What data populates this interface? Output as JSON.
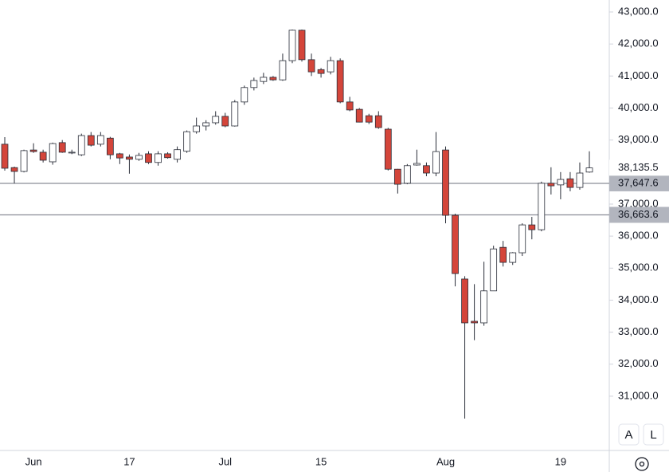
{
  "chart_data": {
    "type": "candlestick",
    "categories": [
      null,
      null,
      null,
      "Jun",
      null,
      null,
      null,
      null,
      null,
      null,
      null,
      null,
      null,
      "17",
      null,
      null,
      null,
      null,
      null,
      null,
      null,
      null,
      null,
      "Jul",
      null,
      null,
      null,
      null,
      null,
      null,
      null,
      null,
      null,
      "15",
      null,
      null,
      null,
      null,
      null,
      null,
      null,
      null,
      null,
      null,
      null,
      null,
      "Aug",
      null,
      null,
      null,
      null,
      null,
      null,
      null,
      null,
      null,
      null,
      null,
      "19",
      null,
      null,
      null
    ],
    "open": [
      38870,
      38140,
      38020,
      38690,
      38620,
      38320,
      38920,
      38600,
      38540,
      39140,
      38870,
      39060,
      38570,
      38470,
      38400,
      38570,
      38300,
      38570,
      38400,
      38650,
      39260,
      39440,
      39540,
      39740,
      39440,
      40190,
      40640,
      40830,
      40960,
      40880,
      41480,
      42430,
      41510,
      41200,
      41130,
      41480,
      40190,
      39960,
      39760,
      39760,
      39340,
      38090,
      37650,
      38220,
      38200,
      37970,
      38690,
      36650,
      34660,
      33340,
      33290,
      34290,
      35650,
      35180,
      35480,
      36350,
      36200,
      37650,
      37600,
      37790,
      37520,
      38000
    ],
    "high": [
      39090,
      38170,
      38700,
      38900,
      38700,
      38920,
      39000,
      38700,
      39200,
      39250,
      39250,
      39100,
      38600,
      38550,
      38600,
      38650,
      38650,
      38620,
      38800,
      39300,
      39700,
      39620,
      39900,
      39850,
      40250,
      40700,
      40950,
      41100,
      41000,
      41700,
      42450,
      42450,
      41700,
      41250,
      41600,
      41550,
      40350,
      40000,
      39820,
      39900,
      39380,
      38100,
      38250,
      38700,
      38300,
      39250,
      38800,
      36700,
      34750,
      34500,
      35200,
      35700,
      35850,
      35500,
      36400,
      36600,
      37700,
      38150,
      38000,
      38000,
      38300,
      38650
    ],
    "low": [
      38045,
      37650,
      37990,
      38600,
      38300,
      38230,
      38600,
      38560,
      38500,
      38800,
      38800,
      38400,
      38250,
      37950,
      38350,
      38250,
      38200,
      38420,
      38300,
      38600,
      39200,
      39300,
      39480,
      39400,
      39420,
      40100,
      40550,
      40750,
      40850,
      40850,
      41400,
      41450,
      41000,
      40950,
      41050,
      40150,
      39900,
      39550,
      39500,
      39350,
      38050,
      37330,
      37620,
      38200,
      37870,
      37870,
      36400,
      34430,
      30300,
      32750,
      33200,
      34290,
      35050,
      35100,
      35380,
      35900,
      36150,
      37300,
      37150,
      37400,
      37450,
      37980
    ],
    "close": [
      38120,
      38020,
      38670,
      38640,
      38370,
      38890,
      38620,
      38620,
      39140,
      38840,
      39140,
      38540,
      38440,
      38400,
      38520,
      38300,
      38570,
      38450,
      38700,
      39260,
      39440,
      39540,
      39740,
      39440,
      40190,
      40640,
      40860,
      40960,
      40880,
      41480,
      42430,
      41510,
      41130,
      41080,
      41480,
      40190,
      39940,
      39560,
      39560,
      39390,
      38090,
      37620,
      38200,
      38270,
      37970,
      38640,
      36650,
      34830,
      33290,
      33290,
      34290,
      35600,
      35180,
      35480,
      36350,
      36200,
      37650,
      37570,
      37770,
      37520,
      37970,
      38130
    ],
    "up_color": "#ffffff",
    "down_color": "#d4453a",
    "outline_color": "#2a2e39",
    "ylim": [
      29305,
      43374
    ],
    "yticks": [
      {
        "value": 43000,
        "label": "43,000.0"
      },
      {
        "value": 42000,
        "label": "42,000.0"
      },
      {
        "value": 41000,
        "label": "41,000.0"
      },
      {
        "value": 40000,
        "label": "40,000.0"
      },
      {
        "value": 39000,
        "label": "39,000.0"
      },
      {
        "value": 37000,
        "label": "37,000.0"
      },
      {
        "value": 36000,
        "label": "36,000.0"
      },
      {
        "value": 35000,
        "label": "35,000.0"
      },
      {
        "value": 34000,
        "label": "34,000.0"
      },
      {
        "value": 33000,
        "label": "33,000.0"
      },
      {
        "value": 32000,
        "label": "32,000.0"
      },
      {
        "value": 31000,
        "label": "31,000.0"
      }
    ],
    "horizontal_lines": [
      {
        "value": 37647.6,
        "label": "37,647.6"
      },
      {
        "value": 36663.6,
        "label": "36,663.6"
      }
    ],
    "last_price": {
      "value": 38135.5,
      "label": "38,135.5"
    },
    "buttons": [
      "A",
      "L"
    ]
  }
}
